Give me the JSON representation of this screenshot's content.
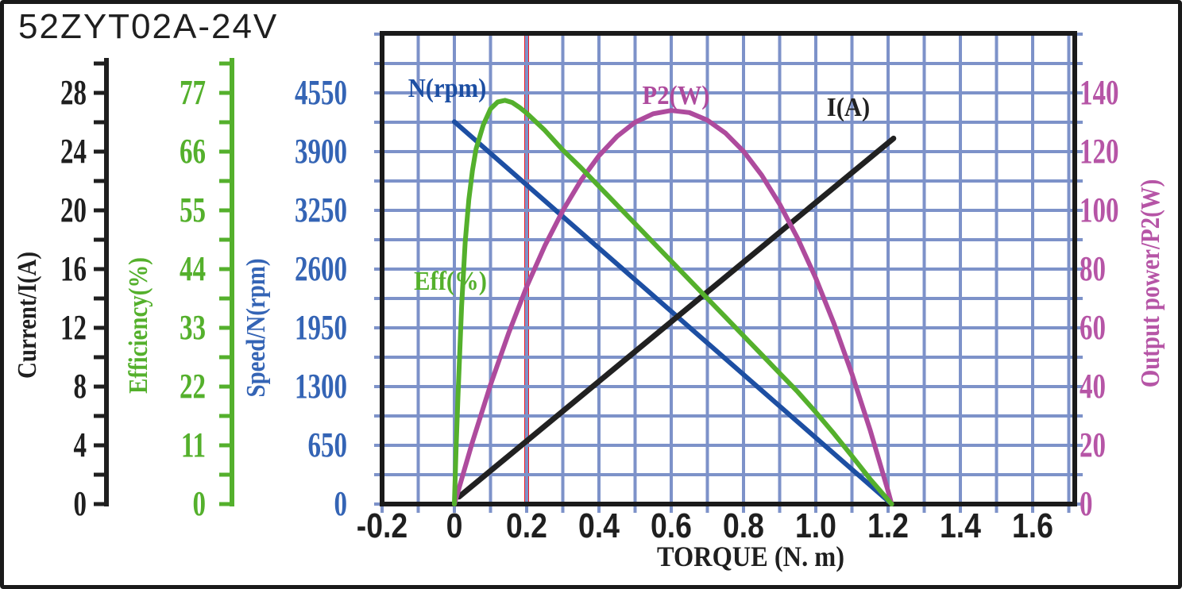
{
  "title": "52ZYT02A-24V",
  "colors": {
    "frame": "#1a1a1a",
    "background": "#ffffff",
    "grid": "#7d92c9",
    "reference_red": "#ee1c24"
  },
  "chart_data": {
    "type": "line",
    "title": "52ZYT02A-24V",
    "x_axis": {
      "label": "TORQUE (N. m)",
      "tick_labels": [
        "-0.2",
        "0",
        "0.2",
        "0.4",
        "0.6",
        "0.8",
        "1.0",
        "1.2",
        "1.4",
        "1.6"
      ],
      "min": -0.2,
      "max": 1.72,
      "grid_step": 0.1
    },
    "y_axes": [
      {
        "id": "current",
        "label": "Current/I(A)",
        "color": "#1f1f1f",
        "ticks": [
          0,
          4,
          8,
          12,
          16,
          20,
          24,
          28
        ],
        "tick_step_minor": 2,
        "full_scale": 32,
        "axis_line": true
      },
      {
        "id": "efficiency",
        "label": "Efficiency(%)",
        "color": "#54b02c",
        "ticks": [
          0,
          11,
          22,
          33,
          44,
          55,
          66,
          77
        ],
        "tick_step_minor": 5.5,
        "full_scale": 88,
        "axis_line": true
      },
      {
        "id": "speed",
        "label": "Speed/N(rpm)",
        "color": "#3464b5",
        "ticks": [
          0,
          650,
          1300,
          1950,
          2600,
          3250,
          3900,
          4550
        ],
        "full_scale": 5200,
        "axis_line": false
      },
      {
        "id": "power",
        "label": "Output power/P2(W)",
        "color": "#b655a6",
        "ticks": [
          0,
          20,
          40,
          60,
          80,
          100,
          120,
          140
        ],
        "full_scale": 160,
        "axis_line": false,
        "side": "right"
      }
    ],
    "grid": {
      "visible": true,
      "color": "#7d92c9"
    },
    "reference_line": {
      "x": 0.2,
      "color": "#ee1c24"
    },
    "series": [
      {
        "name": "N(rpm)",
        "axis": "speed",
        "color": "#1d4fa3",
        "shape": "line",
        "points": [
          [
            0,
            4230
          ],
          [
            1.21,
            0
          ]
        ]
      },
      {
        "name": "I(A)",
        "axis": "current",
        "color": "#212121",
        "shape": "line",
        "points": [
          [
            0.013,
            0.5
          ],
          [
            1.215,
            24.9
          ]
        ]
      },
      {
        "name": "P2(W)",
        "axis": "power",
        "color": "#ae4b9d",
        "shape": "curve",
        "points": [
          [
            0,
            0
          ],
          [
            0.05,
            21.2
          ],
          [
            0.1,
            40.6
          ],
          [
            0.15,
            58.2
          ],
          [
            0.2,
            74
          ],
          [
            0.25,
            87.9
          ],
          [
            0.3,
            99.9
          ],
          [
            0.35,
            110.2
          ],
          [
            0.4,
            118.6
          ],
          [
            0.45,
            125.2
          ],
          [
            0.5,
            130
          ],
          [
            0.55,
            132.9
          ],
          [
            0.6,
            134
          ],
          [
            0.65,
            133.3
          ],
          [
            0.7,
            130.7
          ],
          [
            0.75,
            126.3
          ],
          [
            0.8,
            120.1
          ],
          [
            0.85,
            112
          ],
          [
            0.9,
            102.1
          ],
          [
            0.95,
            90.4
          ],
          [
            1.0,
            76.9
          ],
          [
            1.05,
            61.5
          ],
          [
            1.1,
            44.3
          ],
          [
            1.15,
            25.3
          ],
          [
            1.2,
            4.4
          ],
          [
            1.21,
            0
          ]
        ]
      },
      {
        "name": "Eff(%)",
        "axis": "efficiency",
        "color": "#54b02c",
        "shape": "curve",
        "points": [
          [
            0,
            0
          ],
          [
            0.005,
            11
          ],
          [
            0.01,
            20
          ],
          [
            0.02,
            37
          ],
          [
            0.03,
            49
          ],
          [
            0.04,
            57
          ],
          [
            0.05,
            62.5
          ],
          [
            0.06,
            66.5
          ],
          [
            0.08,
            71
          ],
          [
            0.1,
            74
          ],
          [
            0.12,
            75.3
          ],
          [
            0.14,
            75.6
          ],
          [
            0.16,
            75.2
          ],
          [
            0.18,
            74.3
          ],
          [
            0.2,
            73.2
          ],
          [
            0.25,
            70
          ],
          [
            0.3,
            66.3
          ],
          [
            0.35,
            63
          ],
          [
            0.4,
            59.5
          ],
          [
            0.45,
            56
          ],
          [
            0.5,
            52.5
          ],
          [
            0.55,
            49
          ],
          [
            0.6,
            45.5
          ],
          [
            0.65,
            42
          ],
          [
            0.7,
            38.5
          ],
          [
            0.75,
            35
          ],
          [
            0.8,
            31.5
          ],
          [
            0.85,
            28
          ],
          [
            0.9,
            24.5
          ],
          [
            0.95,
            21
          ],
          [
            1.0,
            17.2
          ],
          [
            1.05,
            13.2
          ],
          [
            1.1,
            9
          ],
          [
            1.15,
            4.7
          ],
          [
            1.21,
            0
          ]
        ]
      }
    ]
  }
}
